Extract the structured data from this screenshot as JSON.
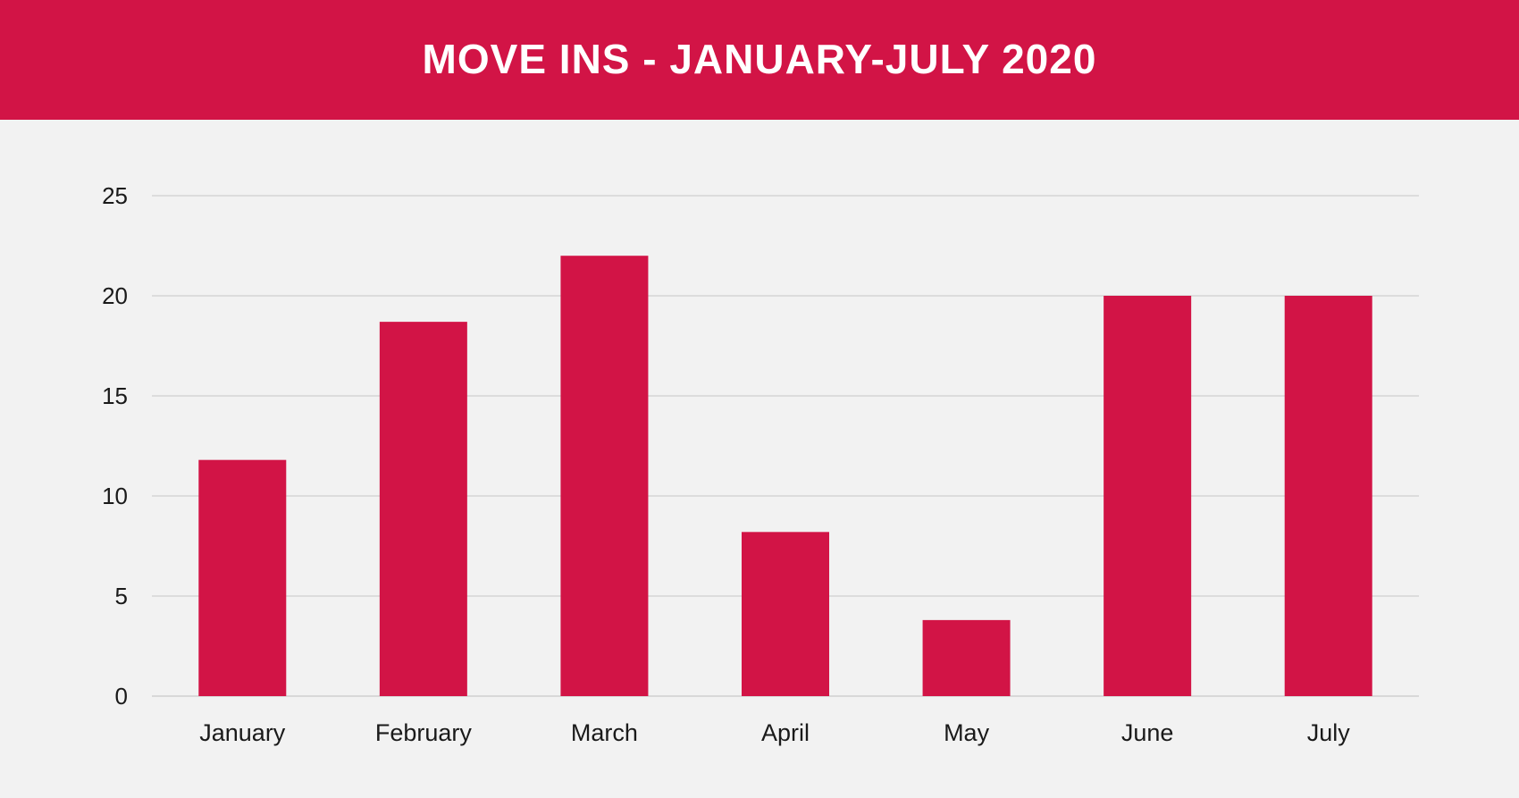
{
  "header": {
    "title": "MOVE INS - JANUARY-JULY 2020"
  },
  "colors": {
    "header_bg": "#d21446",
    "bar": "#d21446",
    "grid": "#cfcfcf",
    "background": "#f2f2f2"
  },
  "chart_data": {
    "type": "bar",
    "title": "MOVE INS - JANUARY-JULY 2020",
    "xlabel": "",
    "ylabel": "",
    "categories": [
      "January",
      "February",
      "March",
      "April",
      "May",
      "June",
      "July"
    ],
    "values": [
      11.8,
      18.7,
      22,
      8.2,
      3.8,
      20,
      20
    ],
    "ylim": [
      0,
      25
    ],
    "yticks": [
      0,
      5,
      10,
      15,
      20,
      25
    ],
    "ytick_labels": [
      "0",
      "5",
      "10",
      "15",
      "20",
      "25"
    ],
    "grid": true,
    "legend": "none"
  }
}
